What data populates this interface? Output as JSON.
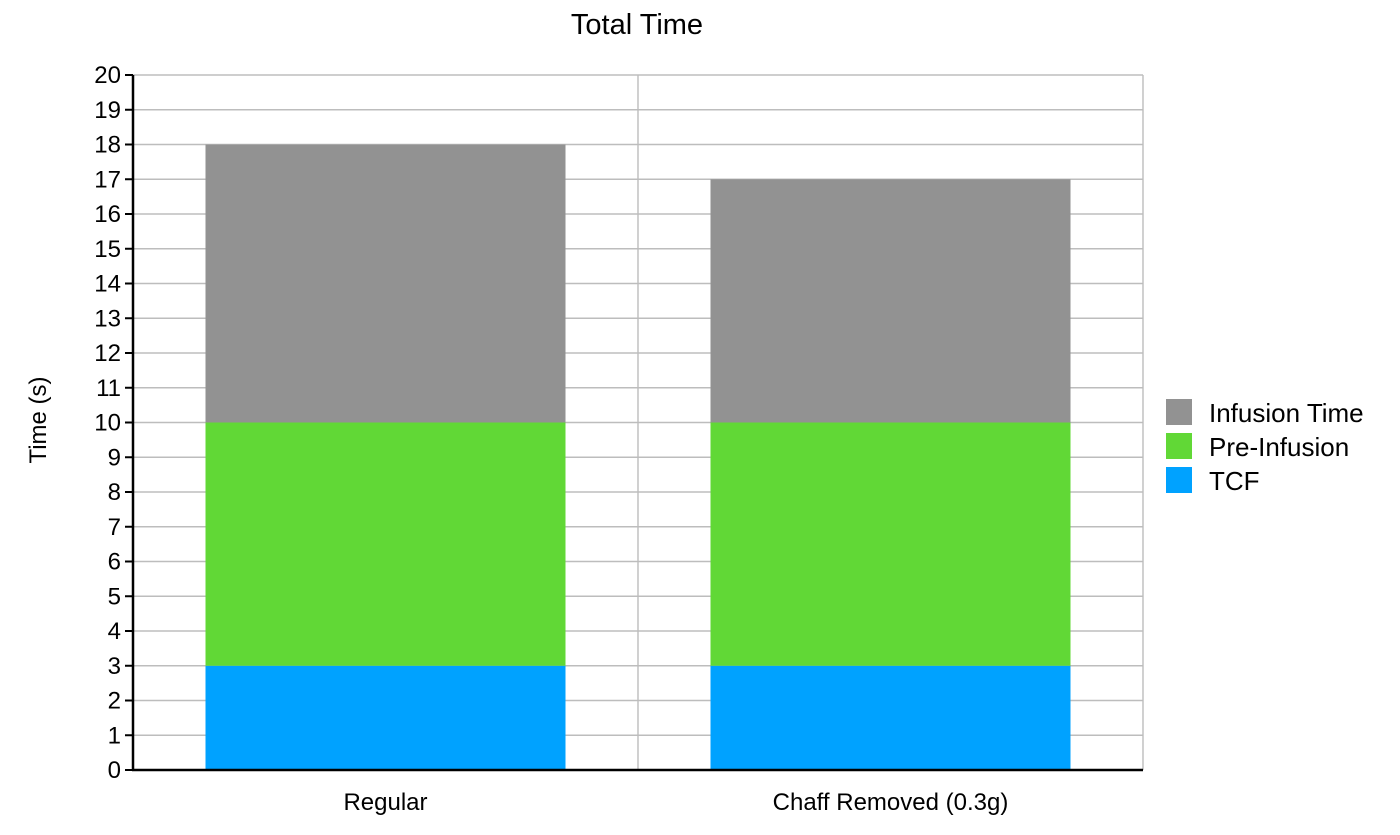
{
  "chart_data": {
    "type": "bar",
    "stacked": true,
    "title": "Total Time",
    "xlabel": "",
    "ylabel": "Time (s)",
    "ylim": [
      0,
      20
    ],
    "yticks": [
      0,
      1,
      2,
      3,
      4,
      5,
      6,
      7,
      8,
      9,
      10,
      11,
      12,
      13,
      14,
      15,
      16,
      17,
      18,
      19,
      20
    ],
    "grid": true,
    "legend_position": "right",
    "categories": [
      "Regular",
      "Chaff Removed (0.3g)"
    ],
    "series": [
      {
        "name": "TCF",
        "values": [
          3,
          3
        ],
        "color": "#00a2ff"
      },
      {
        "name": "Pre-Infusion",
        "values": [
          7,
          7
        ],
        "color": "#61d836"
      },
      {
        "name": "Infusion Time",
        "values": [
          8,
          7
        ],
        "color": "#929292"
      }
    ]
  }
}
